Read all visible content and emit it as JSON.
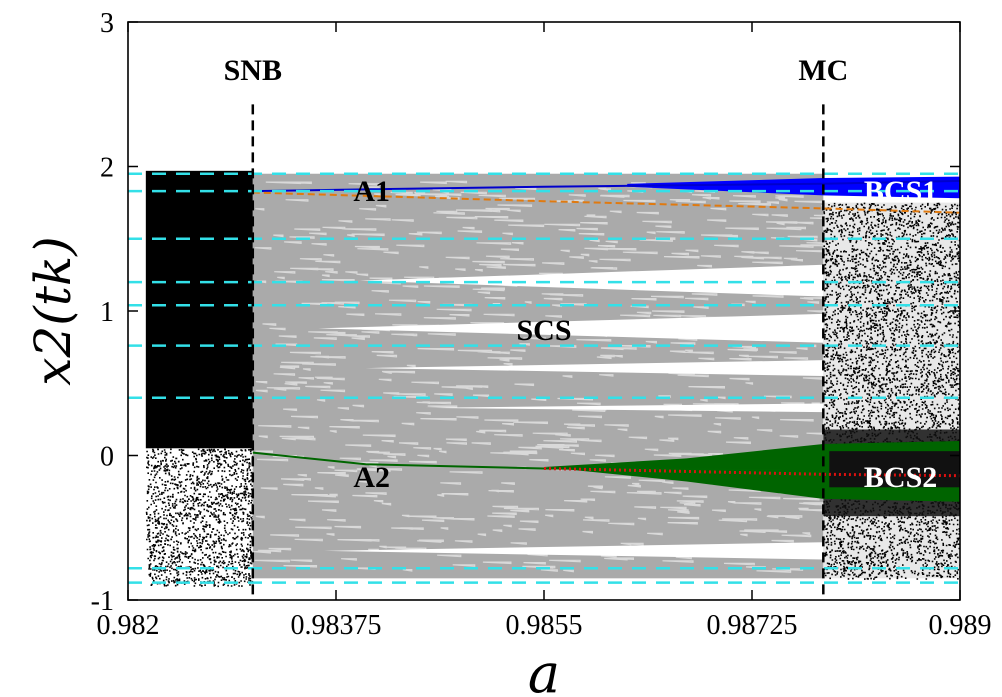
{
  "chart_data": {
    "type": "scatter",
    "xlabel": "a",
    "ylabel": "x2(tk)",
    "xlim": [
      0.982,
      0.989
    ],
    "ylim": [
      -1,
      3
    ],
    "x_ticks": [
      0.982,
      0.98375,
      0.9855,
      0.98725,
      0.989
    ],
    "x_tick_labels": [
      "0.982",
      "0.98375",
      "0.9855",
      "0.98725",
      "0.989"
    ],
    "y_ticks": [
      -1,
      0,
      1,
      2,
      3
    ],
    "y_tick_labels": [
      "-1",
      "0",
      "1",
      "2",
      "3"
    ],
    "vertical_markers": [
      {
        "label": "SNB",
        "x": 0.98305
      },
      {
        "label": "MC",
        "x": 0.98785
      }
    ],
    "region_labels": [
      {
        "label": "A1",
        "x": 0.98405,
        "y": 1.83,
        "color": "#000000"
      },
      {
        "label": "A2",
        "x": 0.98405,
        "y": -0.15,
        "color": "#000000"
      },
      {
        "label": "SCS",
        "x": 0.9855,
        "y": 0.87,
        "color": "#000000"
      },
      {
        "label": "BCS1",
        "x": 0.9885,
        "y": 1.83,
        "color": "#ffffff"
      },
      {
        "label": "BCS2",
        "x": 0.9885,
        "y": -0.15,
        "color": "#ffffff"
      }
    ],
    "series": [
      {
        "name": "A1",
        "color": "#0000cc",
        "x": [
          0.98305,
          0.9855,
          0.98785,
          0.989
        ],
        "y": [
          1.83,
          1.86,
          1.88,
          1.9
        ]
      },
      {
        "name": "A1 unstable",
        "color": "#e07a10",
        "style": "dashed",
        "x": [
          0.98305,
          0.9855,
          0.98785,
          0.989
        ],
        "y": [
          1.82,
          1.76,
          1.71,
          1.68
        ]
      },
      {
        "name": "A2",
        "color": "#006600",
        "x": [
          0.98305,
          0.984,
          0.9855,
          0.9875
        ],
        "y": [
          0.02,
          -0.06,
          -0.09,
          -0.1
        ]
      },
      {
        "name": "A2 unstable",
        "color": "#dd1111",
        "style": "dotted",
        "x": [
          0.9855,
          0.98785,
          0.989
        ],
        "y": [
          -0.09,
          -0.13,
          -0.14
        ]
      }
    ],
    "horizontal_dashed_levels": [
      1.95,
      1.83,
      1.5,
      1.2,
      1.04,
      0.76,
      0.4,
      -0.78,
      -0.88
    ],
    "colors": {
      "chaotic": "#000000",
      "scs": "#aaaaaa",
      "bcs1": "#0000ff",
      "bcs2": "#006400",
      "cyan": "#33e0e8"
    },
    "grid": false
  }
}
